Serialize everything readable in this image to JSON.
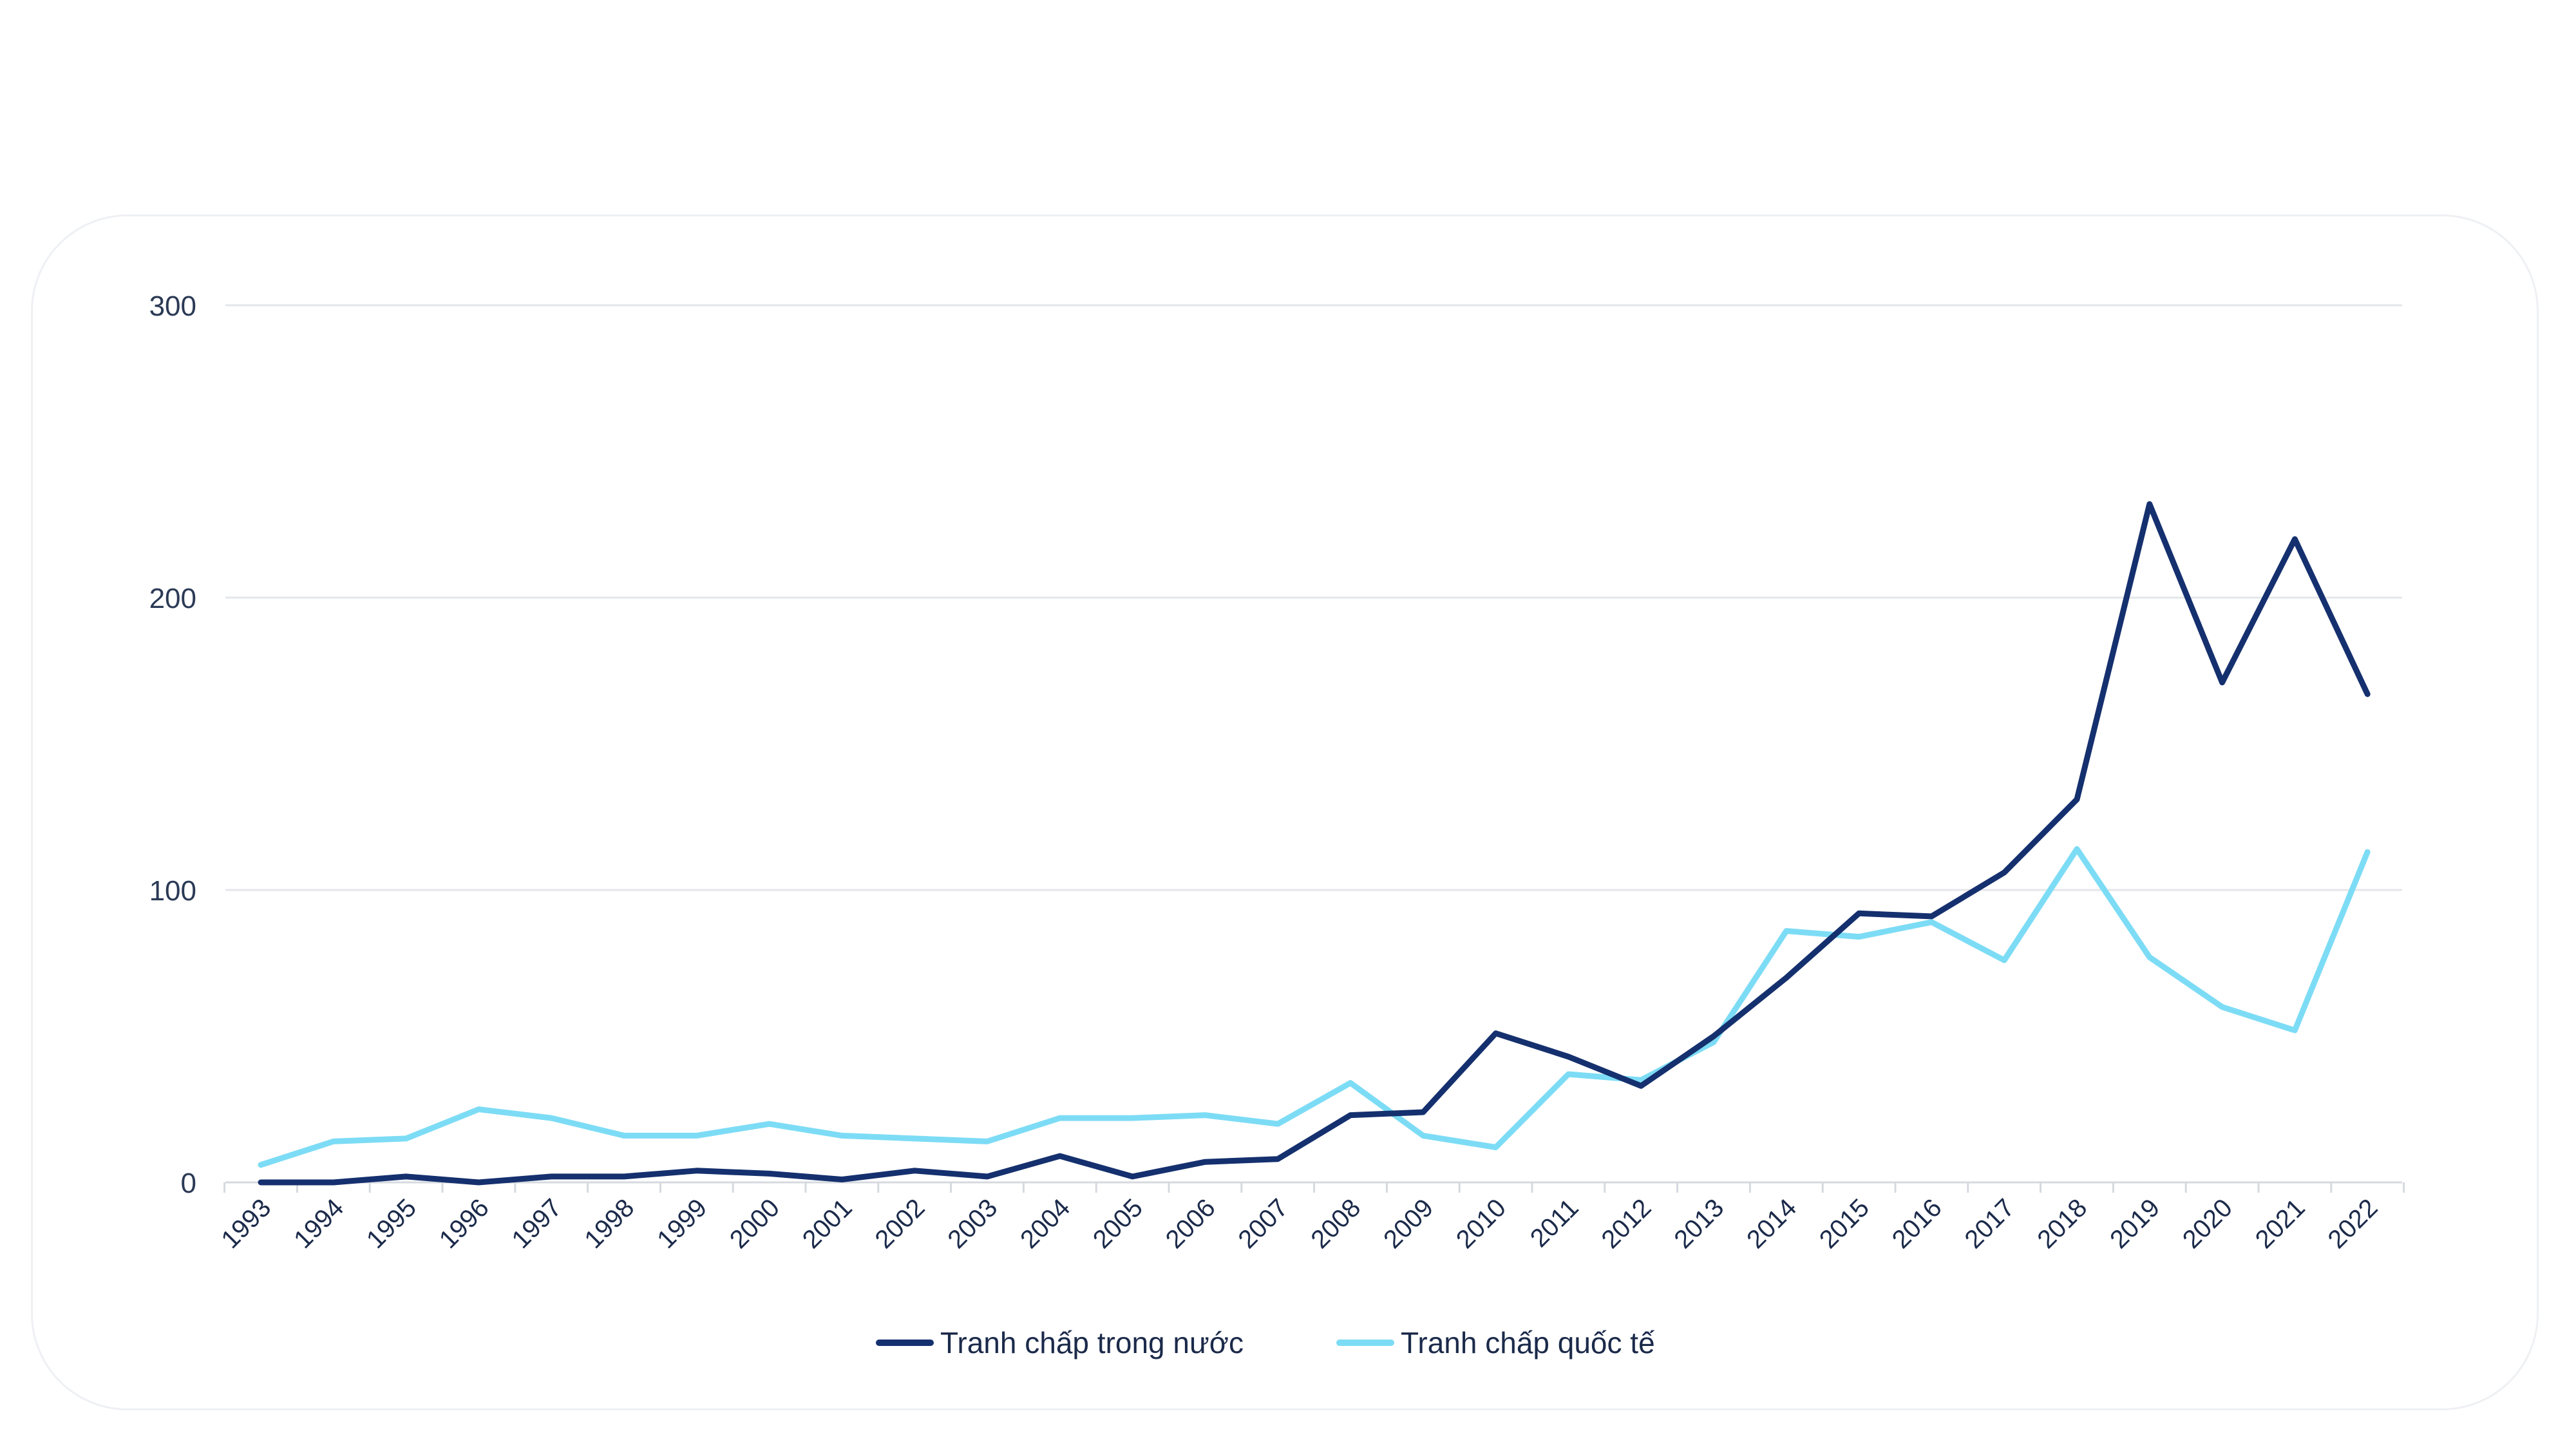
{
  "chart_data": {
    "type": "line",
    "title": "",
    "xlabel": "",
    "ylabel": "",
    "ylim": [
      0,
      300
    ],
    "yticks": [
      0,
      100,
      200,
      300
    ],
    "grid": true,
    "legend_position": "bottom-center",
    "x": [
      "1993",
      "1994",
      "1995",
      "1996",
      "1997",
      "1998",
      "1999",
      "2000",
      "2001",
      "2002",
      "2003",
      "2004",
      "2005",
      "2006",
      "2007",
      "2008",
      "2009",
      "2010",
      "2011",
      "2012",
      "2013",
      "2014",
      "2015",
      "2016",
      "2017",
      "2018",
      "2019",
      "2020",
      "2021",
      "2022"
    ],
    "series": [
      {
        "name": "Tranh chấp trong nước",
        "color": "#15306e",
        "values": [
          0,
          0,
          2,
          0,
          2,
          2,
          4,
          3,
          1,
          4,
          2,
          9,
          2,
          7,
          8,
          23,
          24,
          51,
          43,
          33,
          50,
          70,
          92,
          91,
          106,
          131,
          232,
          171,
          220,
          167
        ]
      },
      {
        "name": "Tranh chấp quốc tế",
        "color": "#7ddcf5",
        "values": [
          6,
          14,
          15,
          25,
          22,
          16,
          16,
          20,
          16,
          15,
          14,
          22,
          22,
          23,
          20,
          34,
          16,
          12,
          37,
          35,
          48,
          86,
          84,
          89,
          76,
          114,
          77,
          60,
          52,
          113
        ]
      }
    ]
  }
}
